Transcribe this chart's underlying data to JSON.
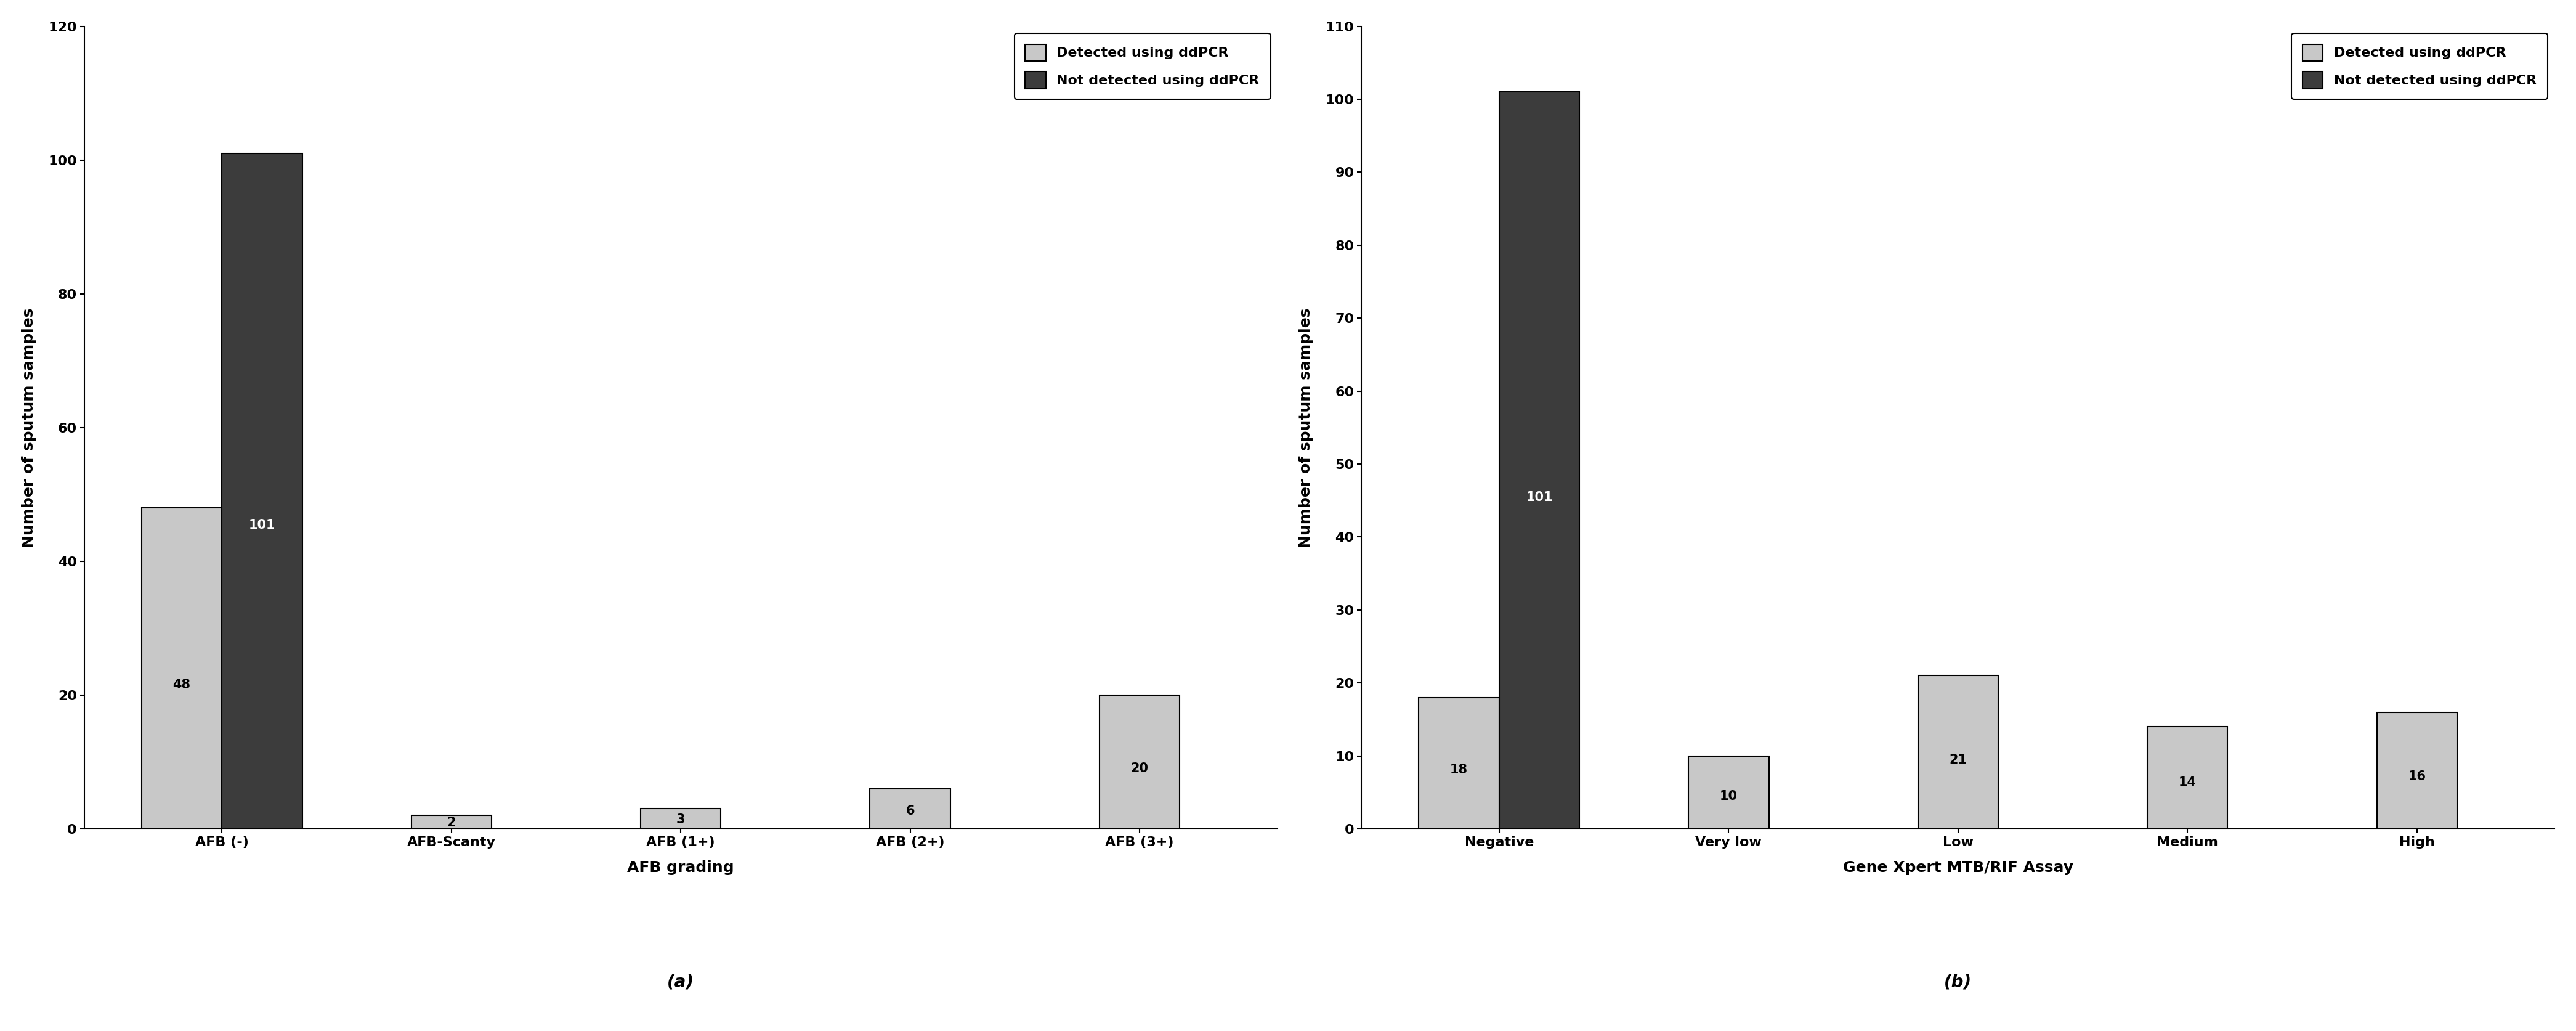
{
  "panel_a": {
    "categories": [
      "AFB (-)",
      "AFB-Scanty",
      "AFB (1+)",
      "AFB (2+)",
      "AFB (3+)"
    ],
    "detected": [
      48,
      2,
      3,
      6,
      20
    ],
    "not_detected": [
      101,
      0,
      0,
      0,
      0
    ],
    "ylim": [
      0,
      120
    ],
    "yticks": [
      0,
      20,
      40,
      60,
      80,
      100,
      120
    ],
    "xlabel": "AFB grading",
    "ylabel": "Number of sputum samples",
    "label_bottom": "(a)"
  },
  "panel_b": {
    "categories": [
      "Negative",
      "Very low",
      "Low",
      "Medium",
      "High"
    ],
    "detected": [
      18,
      10,
      21,
      14,
      16
    ],
    "not_detected": [
      101,
      0,
      0,
      0,
      0
    ],
    "ylim": [
      0,
      110
    ],
    "yticks": [
      0,
      10,
      20,
      30,
      40,
      50,
      60,
      70,
      80,
      90,
      100,
      110
    ],
    "xlabel": "Gene Xpert MTB/RIF Assay",
    "ylabel": "Number of sputum samples",
    "label_bottom": "(b)"
  },
  "legend_detected_label": "Detected using ddPCR",
  "legend_not_detected_label": "Not detected using ddPCR",
  "color_detected": "#c8c8c8",
  "color_not_detected": "#3c3c3c",
  "bar_width": 0.35,
  "bar_edgecolor": "#000000",
  "figwidth_inches": 41.82,
  "figheight_inches": 16.73,
  "dpi": 100,
  "background_color": "#ffffff",
  "label_fontsize": 18,
  "tick_fontsize": 16,
  "legend_fontsize": 16,
  "annotation_fontsize": 15,
  "sublabel_fontsize": 20
}
